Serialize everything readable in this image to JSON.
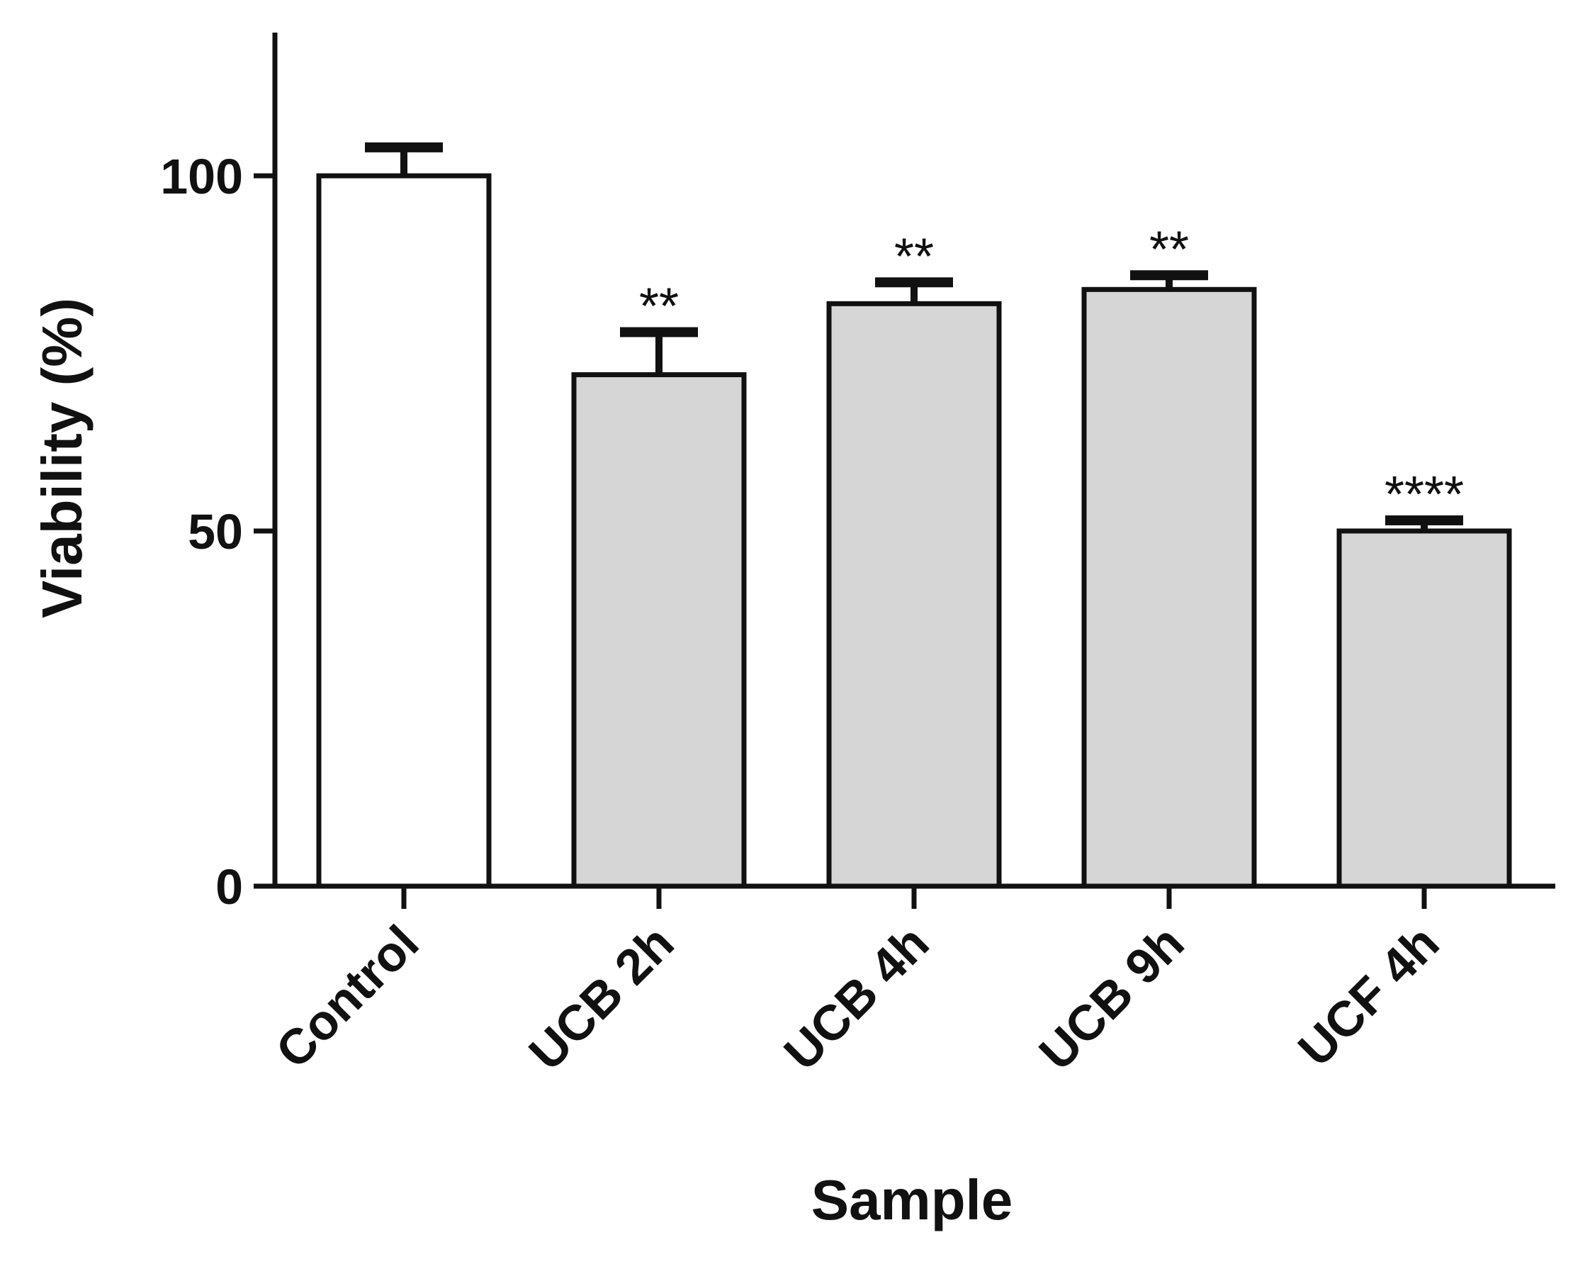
{
  "chart_data": {
    "type": "bar",
    "categories": [
      "Control",
      "UCB 2h",
      "UCB 4h",
      "UCB 9h",
      "UCF 4h"
    ],
    "values": [
      100,
      72,
      82,
      84,
      50
    ],
    "errors": [
      4,
      6,
      3,
      2,
      1.5
    ],
    "significance": [
      "",
      "**",
      "**",
      "**",
      "****"
    ],
    "fills": [
      "#ffffff",
      "#d6d6d6",
      "#d6d6d6",
      "#d6d6d6",
      "#d6d6d6"
    ],
    "xlabel": "Sample",
    "ylabel": "Viability (%)",
    "ylim": [
      0,
      120
    ],
    "yticks": [
      0,
      50,
      100
    ],
    "grid": false,
    "legend": "none"
  }
}
